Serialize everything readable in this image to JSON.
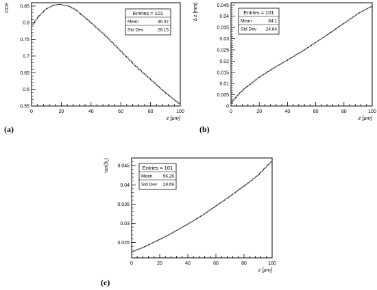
{
  "panel_labels": [
    "(a)",
    "(b)",
    "(c)"
  ],
  "chart_data": [
    {
      "type": "line",
      "title": "",
      "ylabel": "CCE",
      "xlabel": "z [μm]",
      "xlim": [
        0,
        100
      ],
      "ylim": [
        0.55,
        0.86
      ],
      "xticks": [
        0,
        20,
        40,
        60,
        80,
        100
      ],
      "yticks": [
        0.55,
        0.6,
        0.65,
        0.7,
        0.75,
        0.8,
        0.85
      ],
      "ytick_labels": [
        "0.55",
        "0.6",
        "0.65",
        "0.7",
        "0.75",
        "0.8",
        "0.85"
      ],
      "xtick_labels": [
        "0",
        "20",
        "40",
        "60",
        "80",
        "100"
      ],
      "stats": {
        "entries_label": "Entries = 101",
        "rows": [
          [
            "Mean",
            "46.02"
          ],
          [
            "Std Dev",
            "28.15"
          ]
        ]
      },
      "series": [
        {
          "x": [
            0,
            5,
            10,
            15,
            19,
            25,
            30,
            40,
            50,
            60,
            70,
            80,
            90,
            100
          ],
          "y": [
            0.79,
            0.82,
            0.842,
            0.853,
            0.855,
            0.85,
            0.838,
            0.8,
            0.76,
            0.715,
            0.67,
            0.63,
            0.59,
            0.555
          ]
        }
      ]
    },
    {
      "type": "line",
      "title": "",
      "ylabel": "Δ z [mm]",
      "xlabel": "z [μm]",
      "xlim": [
        0,
        100
      ],
      "ylim": [
        0,
        0.046
      ],
      "xticks": [
        0,
        20,
        40,
        60,
        80,
        100
      ],
      "yticks": [
        0,
        0.005,
        0.01,
        0.015,
        0.02,
        0.025,
        0.03,
        0.035,
        0.04,
        0.045
      ],
      "ytick_labels": [
        "0",
        "0.005",
        "0.01",
        "0.015",
        "0.02",
        "0.025",
        "0.03",
        "0.035",
        "0.04",
        "0.045"
      ],
      "xtick_labels": [
        "0",
        "20",
        "40",
        "60",
        "80",
        "100"
      ],
      "stats": {
        "entries_label": "Entries = 101",
        "rows": [
          [
            "Mean",
            "64.1"
          ],
          [
            "Std Dev",
            "24.84"
          ]
        ]
      },
      "series": [
        {
          "x": [
            0,
            5,
            10,
            20,
            30,
            40,
            50,
            60,
            70,
            80,
            90,
            100
          ],
          "y": [
            0.0012,
            0.005,
            0.008,
            0.0128,
            0.0168,
            0.0205,
            0.0242,
            0.0283,
            0.0325,
            0.0368,
            0.0412,
            0.0445
          ]
        }
      ]
    },
    {
      "type": "line",
      "title": "",
      "ylabel": "tan(θL)",
      "ylabel_main": "tan(θ",
      "ylabel_sub": "L",
      "ylabel_close": ")",
      "xlabel": "z [μm]",
      "xlim": [
        0,
        100
      ],
      "ylim": [
        0.021,
        0.047
      ],
      "xticks": [
        0,
        20,
        40,
        60,
        80,
        100
      ],
      "yticks": [
        0.025,
        0.03,
        0.035,
        0.04,
        0.045
      ],
      "ytick_labels": [
        "0.025",
        "0.03",
        "0.035",
        "0.04",
        "0.045"
      ],
      "xtick_labels": [
        "0",
        "20",
        "40",
        "60",
        "80",
        "100"
      ],
      "stats": {
        "entries_label": "Entries = 101",
        "rows": [
          [
            "Mean",
            "56.26"
          ],
          [
            "Std Dev",
            "28.69"
          ]
        ]
      },
      "series": [
        {
          "x": [
            0,
            10,
            20,
            30,
            40,
            50,
            60,
            70,
            80,
            90,
            100
          ],
          "y": [
            0.0225,
            0.024,
            0.0258,
            0.0277,
            0.0298,
            0.032,
            0.0345,
            0.037,
            0.0397,
            0.0425,
            0.0463
          ]
        }
      ]
    }
  ]
}
